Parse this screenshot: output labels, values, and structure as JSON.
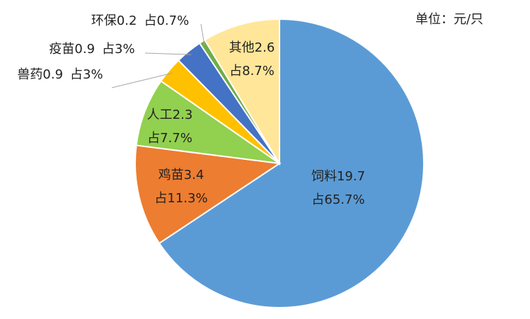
{
  "chart_data": {
    "type": "pie",
    "unit": "单位：元/只",
    "categories": [
      "饲料",
      "鸡苗",
      "人工",
      "兽药",
      "疫苗",
      "环保",
      "其他"
    ],
    "values": [
      19.7,
      3.4,
      2.3,
      0.9,
      0.9,
      0.2,
      2.6
    ],
    "percent_labels": [
      "占65.7%",
      "占11.3%",
      "占7.7%",
      "占3%",
      "占3%",
      "占0.7%",
      "占8.7%"
    ],
    "colors": [
      "#5b9bd5",
      "#ed7d31",
      "#92d050",
      "#ffc000",
      "#4472c4",
      "#70ad47",
      "#ffe699"
    ]
  }
}
